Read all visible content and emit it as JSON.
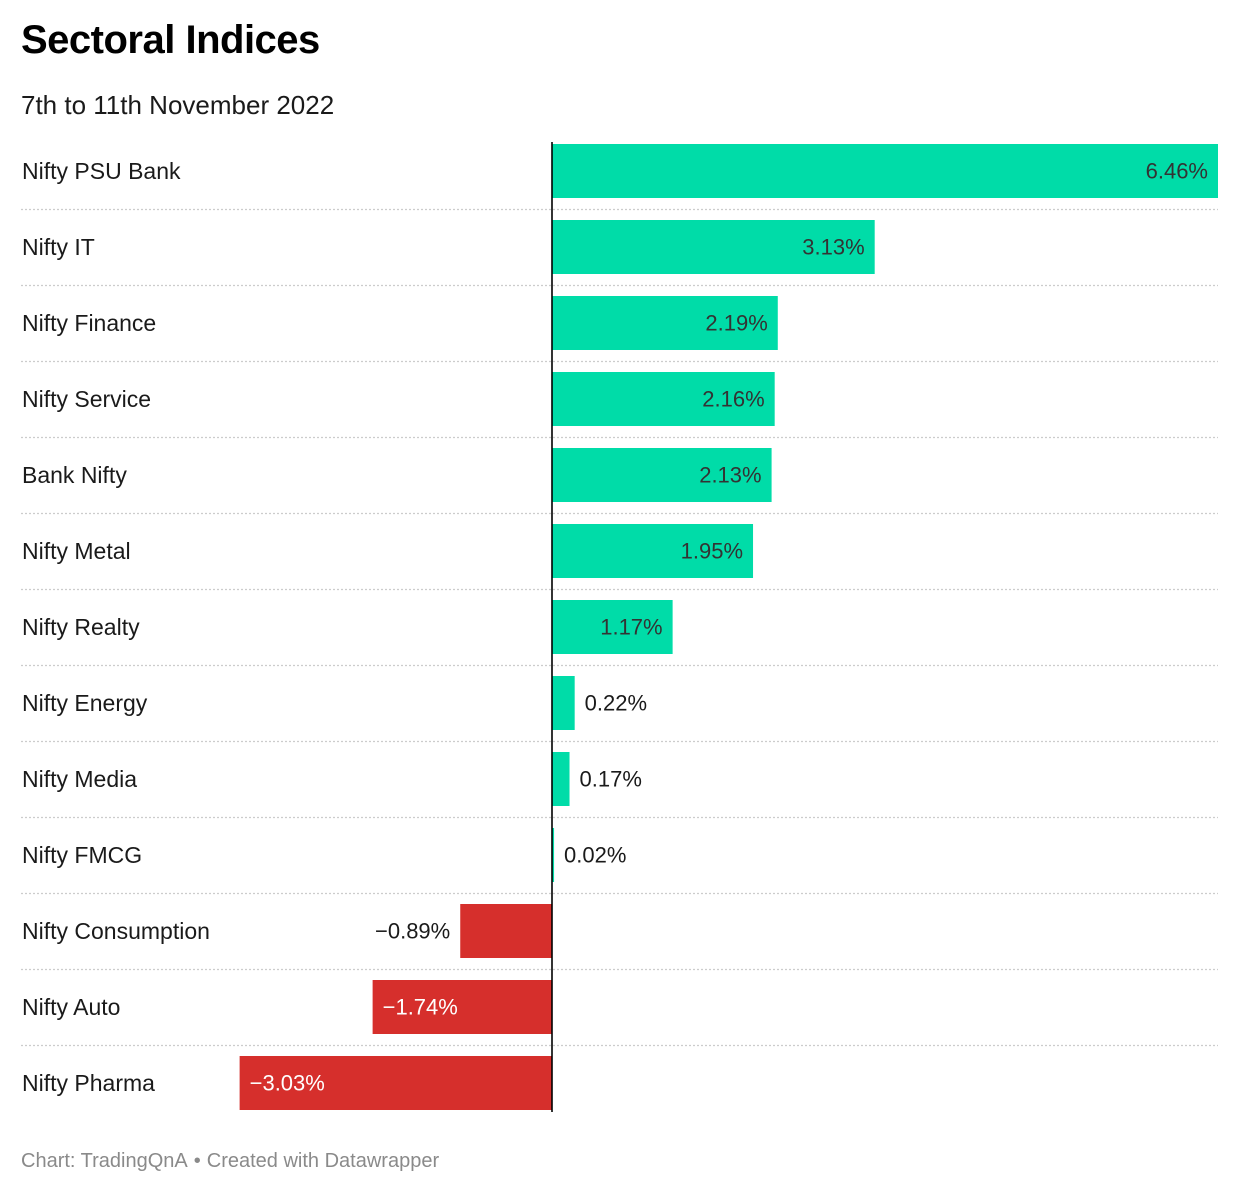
{
  "title": "Sectoral Indices",
  "subtitle": "7th to 11th November 2022",
  "footer": {
    "source": "Chart: TradingQnA",
    "separator": "•",
    "credit": "Created with Datawrapper"
  },
  "colors": {
    "positive": "#00dca8",
    "negative": "#d62f2c",
    "baseline": "#000000",
    "gridline": "#cccccc",
    "label_text": "#1a1a1a"
  },
  "chart_data": {
    "type": "bar",
    "orientation": "horizontal",
    "title": "Sectoral Indices",
    "subtitle": "7th to 11th November 2022",
    "categories": [
      "Nifty PSU Bank",
      "Nifty IT",
      "Nifty Finance",
      "Nifty Service",
      "Bank Nifty",
      "Nifty Metal",
      "Nifty Realty",
      "Nifty Energy",
      "Nifty Media",
      "Nifty FMCG",
      "Nifty Consumption",
      "Nifty Auto",
      "Nifty Pharma"
    ],
    "values": [
      6.46,
      3.13,
      2.19,
      2.16,
      2.13,
      1.95,
      1.17,
      0.22,
      0.17,
      0.02,
      -0.89,
      -1.74,
      -3.03
    ],
    "value_labels": [
      "6.46%",
      "3.13%",
      "2.19%",
      "2.16%",
      "2.13%",
      "1.95%",
      "1.17%",
      "0.22%",
      "0.17%",
      "0.02%",
      "−0.89%",
      "−1.74%",
      "−3.03%"
    ],
    "xlim": [
      -3.03,
      6.46
    ],
    "unit": "%",
    "grid": false,
    "legend": "none"
  }
}
